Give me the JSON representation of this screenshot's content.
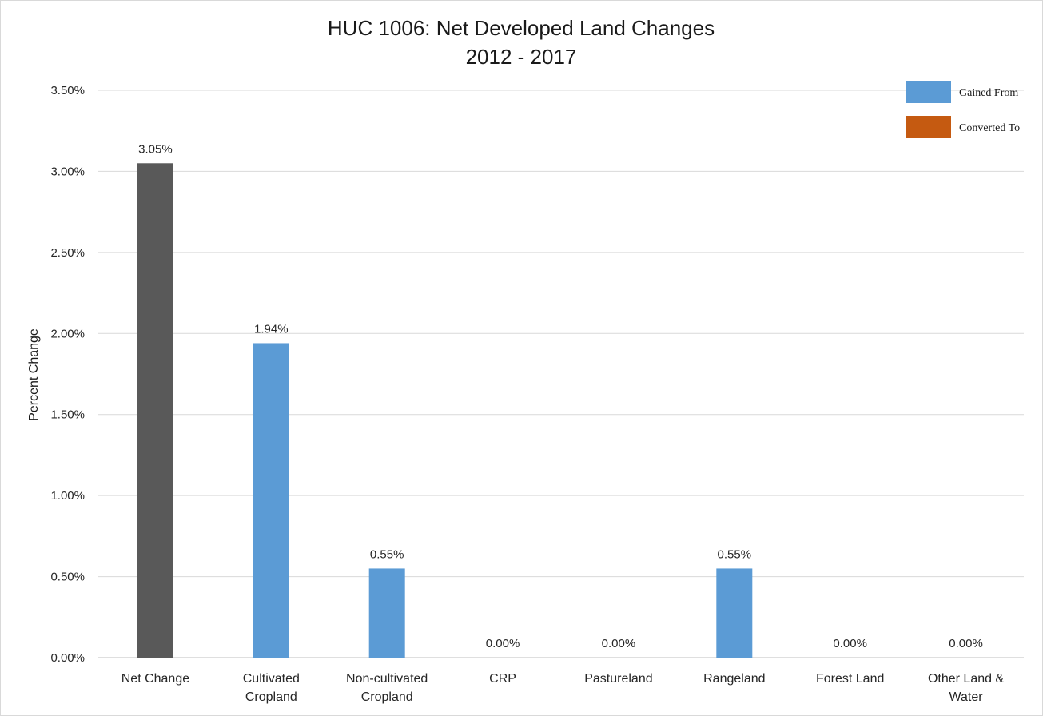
{
  "chart_data": {
    "type": "bar",
    "title": "HUC 1006: Net Developed Land Changes",
    "subtitle": "2012 - 2017",
    "xlabel": "",
    "ylabel": "Percent Change",
    "ylim": [
      0,
      3.5
    ],
    "y_ticks": [
      "0.00%",
      "0.50%",
      "1.00%",
      "1.50%",
      "2.00%",
      "2.50%",
      "3.00%",
      "3.50%"
    ],
    "grid": true,
    "legend_position": "top-right",
    "categories": [
      [
        "Net Change"
      ],
      [
        "Cultivated",
        "Cropland"
      ],
      [
        "Non-cultivated",
        "Cropland"
      ],
      [
        "CRP"
      ],
      [
        "Pastureland"
      ],
      [
        "Rangeland"
      ],
      [
        "Forest Land"
      ],
      [
        "Other Land &",
        "Water"
      ]
    ],
    "values": [
      3.05,
      1.94,
      0.55,
      0.0,
      0.0,
      0.55,
      0.0,
      0.0
    ],
    "data_labels": [
      "3.05%",
      "1.94%",
      "0.55%",
      "0.00%",
      "0.00%",
      "0.55%",
      "0.00%",
      "0.00%"
    ],
    "bar_series": [
      "net",
      "gained",
      "gained",
      "gained",
      "gained",
      "gained",
      "gained",
      "gained"
    ],
    "colors": {
      "net": "#595959",
      "gained": "#5b9bd5",
      "converted": "#c55a11",
      "grid": "#d9d9d9"
    },
    "legend": [
      {
        "key": "gained",
        "label": "Gained From"
      },
      {
        "key": "converted",
        "label": "Converted To"
      }
    ]
  }
}
